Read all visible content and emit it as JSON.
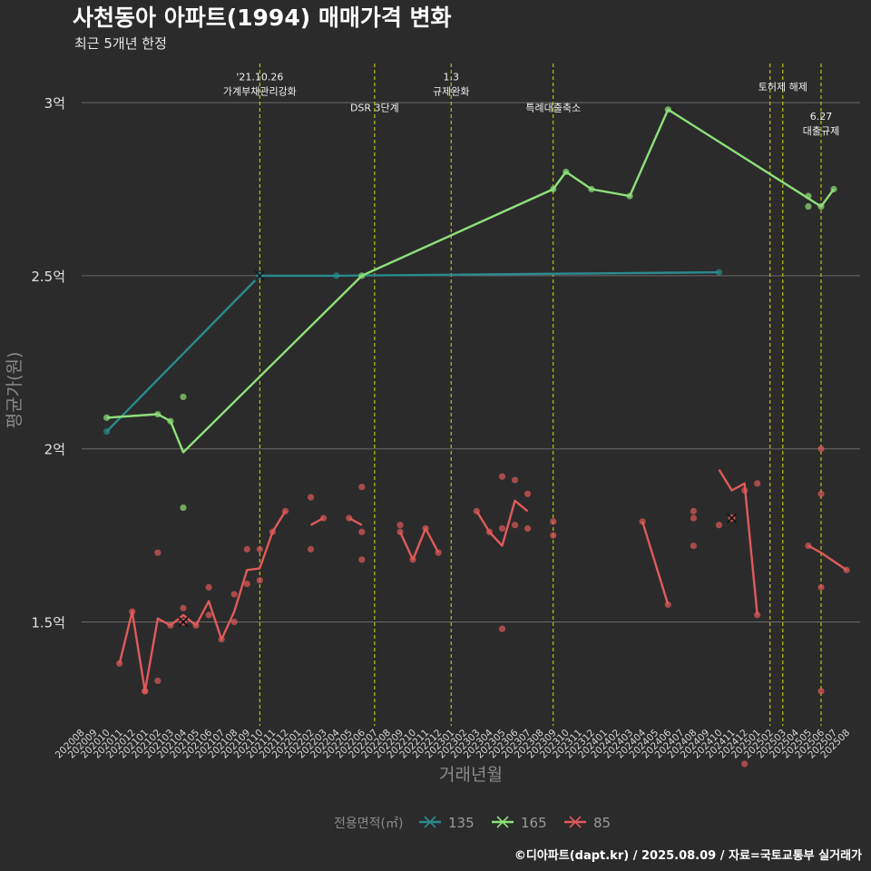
{
  "chart_data": {
    "type": "line",
    "title": "사천동아 아파트(1994) 매매가격 변화",
    "subtitle": "최근 5개년 한정",
    "xlabel": "거래년월",
    "ylabel": "평균가(원)",
    "caption": "©디아파트(dapt.kr) / 2025.08.09 / 자료=국토교통부 실거래가",
    "legend_title": "전용면적(㎡)",
    "ylim": [
      1.2,
      3.12
    ],
    "yticks": [
      {
        "value": 1.5,
        "label": "1.5억"
      },
      {
        "value": 2.0,
        "label": "2억"
      },
      {
        "value": 2.5,
        "label": "2.5억"
      },
      {
        "value": 3.0,
        "label": "3억"
      }
    ],
    "x_categories": [
      "202008",
      "202009",
      "202010",
      "202011",
      "202012",
      "202101",
      "202102",
      "202103",
      "202104",
      "202105",
      "202106",
      "202107",
      "202108",
      "202109",
      "202110",
      "202111",
      "202112",
      "202201",
      "202202",
      "202203",
      "202204",
      "202205",
      "202206",
      "202207",
      "202208",
      "202209",
      "202210",
      "202211",
      "202212",
      "202301",
      "202302",
      "202303",
      "202304",
      "202305",
      "202306",
      "202307",
      "202308",
      "202309",
      "202310",
      "202311",
      "202312",
      "202401",
      "202402",
      "202403",
      "202404",
      "202405",
      "202406",
      "202407",
      "202408",
      "202409",
      "202410",
      "202411",
      "202412",
      "202501",
      "202502",
      "202503",
      "202504",
      "202505",
      "202506",
      "202507",
      "202508"
    ],
    "events": [
      {
        "x": 14,
        "label": "'21.10.26\n가계부채관리강화",
        "label_y": 3.065
      },
      {
        "x": 23,
        "label": "DSR 3단계",
        "label_y": 2.975
      },
      {
        "x": 29,
        "label": "1.3\n규제완화",
        "label_y": 3.065
      },
      {
        "x": 37,
        "label": "특례대출축소",
        "label_y": 2.975
      },
      {
        "x": 54,
        "label": "",
        "label_y": 0
      },
      {
        "x": 55,
        "label": "토허제 해제",
        "label_y": 3.035
      },
      {
        "x": 58,
        "label": "6.27\n대출규제",
        "label_y": 2.95
      }
    ],
    "series": [
      {
        "name": "135",
        "color": "#2a8a8c",
        "line": [
          [
            2,
            2.05
          ],
          [
            14,
            2.5
          ],
          [
            20,
            2.5
          ],
          [
            50,
            2.51
          ]
        ],
        "points": [
          [
            2,
            2.05
          ],
          [
            20,
            2.5
          ],
          [
            50,
            2.51
          ]
        ],
        "x_marks": [
          [
            14,
            2.5
          ]
        ]
      },
      {
        "name": "165",
        "color": "#8ee07a",
        "line": [
          [
            2,
            2.09
          ],
          [
            6,
            2.1
          ],
          [
            7,
            2.08
          ],
          [
            8,
            1.99
          ],
          [
            22,
            2.5
          ],
          [
            37,
            2.75
          ],
          [
            38,
            2.8
          ],
          [
            40,
            2.75
          ],
          [
            43,
            2.73
          ],
          [
            46,
            2.98
          ],
          [
            58,
            2.7
          ],
          [
            59,
            2.75
          ]
        ],
        "points": [
          [
            2,
            2.09
          ],
          [
            6,
            2.1
          ],
          [
            7,
            2.08
          ],
          [
            8,
            2.15
          ],
          [
            8,
            1.83
          ],
          [
            22,
            2.5
          ],
          [
            37,
            2.75
          ],
          [
            38,
            2.8
          ],
          [
            40,
            2.75
          ],
          [
            43,
            2.73
          ],
          [
            46,
            2.98
          ],
          [
            57,
            2.73
          ],
          [
            57,
            2.7
          ],
          [
            58,
            2.7
          ],
          [
            59,
            2.75
          ]
        ],
        "x_marks": []
      },
      {
        "name": "85",
        "color": "#e05a5a",
        "lines": [
          [
            [
              3,
              1.38
            ],
            [
              4,
              1.53
            ],
            [
              5,
              1.3
            ],
            [
              6,
              1.51
            ],
            [
              7,
              1.49
            ],
            [
              8,
              1.52
            ],
            [
              9,
              1.49
            ],
            [
              10,
              1.56
            ],
            [
              11,
              1.45
            ],
            [
              12,
              1.53
            ],
            [
              13,
              1.65
            ],
            [
              14,
              1.655
            ],
            [
              15,
              1.76
            ],
            [
              16,
              1.82
            ]
          ],
          [
            [
              18,
              1.78
            ],
            [
              19,
              1.8
            ]
          ],
          [
            [
              21,
              1.8
            ],
            [
              22,
              1.78
            ]
          ],
          [
            [
              25,
              1.76
            ],
            [
              26,
              1.68
            ],
            [
              27,
              1.77
            ],
            [
              28,
              1.7
            ]
          ],
          [
            [
              31,
              1.82
            ],
            [
              32,
              1.76
            ],
            [
              33,
              1.72
            ],
            [
              34,
              1.85
            ],
            [
              35,
              1.82
            ]
          ],
          [
            [
              44,
              1.79
            ],
            [
              46,
              1.55
            ]
          ],
          [
            [
              50,
              1.94
            ],
            [
              51,
              1.88
            ],
            [
              52,
              1.9
            ],
            [
              53,
              1.52
            ]
          ],
          [
            [
              57,
              1.72
            ],
            [
              58,
              1.7
            ],
            [
              60,
              1.65
            ]
          ]
        ],
        "points": [
          [
            3,
            1.38
          ],
          [
            4,
            1.53
          ],
          [
            5,
            1.3
          ],
          [
            5,
            1.3
          ],
          [
            6,
            1.7
          ],
          [
            6,
            1.33
          ],
          [
            7,
            1.49
          ],
          [
            8,
            1.54
          ],
          [
            9,
            1.49
          ],
          [
            10,
            1.6
          ],
          [
            10,
            1.52
          ],
          [
            11,
            1.45
          ],
          [
            12,
            1.58
          ],
          [
            12,
            1.5
          ],
          [
            13,
            1.71
          ],
          [
            13,
            1.61
          ],
          [
            14,
            1.71
          ],
          [
            14,
            1.62
          ],
          [
            15,
            1.76
          ],
          [
            16,
            1.82
          ],
          [
            18,
            1.86
          ],
          [
            18,
            1.71
          ],
          [
            19,
            1.8
          ],
          [
            21,
            1.8
          ],
          [
            22,
            1.89
          ],
          [
            22,
            1.76
          ],
          [
            22,
            1.68
          ],
          [
            25,
            1.78
          ],
          [
            25,
            1.76
          ],
          [
            26,
            1.68
          ],
          [
            27,
            1.77
          ],
          [
            28,
            1.7
          ],
          [
            31,
            1.82
          ],
          [
            32,
            1.76
          ],
          [
            33,
            1.92
          ],
          [
            33,
            1.77
          ],
          [
            33,
            1.48
          ],
          [
            34,
            1.91
          ],
          [
            34,
            1.78
          ],
          [
            35,
            1.87
          ],
          [
            35,
            1.77
          ],
          [
            37,
            1.79
          ],
          [
            37,
            1.75
          ],
          [
            44,
            1.79
          ],
          [
            46,
            1.55
          ],
          [
            48,
            1.82
          ],
          [
            48,
            1.8
          ],
          [
            48,
            1.72
          ],
          [
            50,
            1.78
          ],
          [
            52,
            1.09
          ],
          [
            52,
            1.88
          ],
          [
            53,
            1.9
          ],
          [
            53,
            1.52
          ],
          [
            58,
            2.0
          ],
          [
            58,
            1.87
          ],
          [
            58,
            1.6
          ],
          [
            58,
            1.3
          ],
          [
            57,
            1.72
          ],
          [
            60,
            1.65
          ]
        ],
        "x_marks": [
          [
            8,
            1.5
          ],
          [
            51,
            1.8
          ]
        ]
      }
    ]
  }
}
